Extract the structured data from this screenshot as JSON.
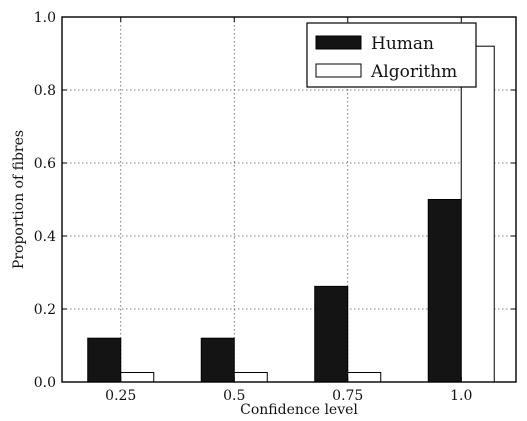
{
  "chart_data": {
    "type": "bar",
    "xlabel": "Confidence level",
    "ylabel": "Proportion of fibres",
    "categories": [
      "0.25",
      "0.5",
      "0.75",
      "1.0"
    ],
    "series": [
      {
        "name": "Human",
        "values": [
          0.12,
          0.12,
          0.262,
          0.5
        ],
        "color": "#141414"
      },
      {
        "name": "Algorithm",
        "values": [
          0.026,
          0.026,
          0.026,
          0.92
        ],
        "color": "#ffffff"
      }
    ],
    "yticks": [
      "0.0",
      "0.2",
      "0.4",
      "0.6",
      "0.8",
      "1.0"
    ],
    "ylim": [
      0,
      1.0
    ],
    "grid": true,
    "legend_position": "top-right"
  }
}
